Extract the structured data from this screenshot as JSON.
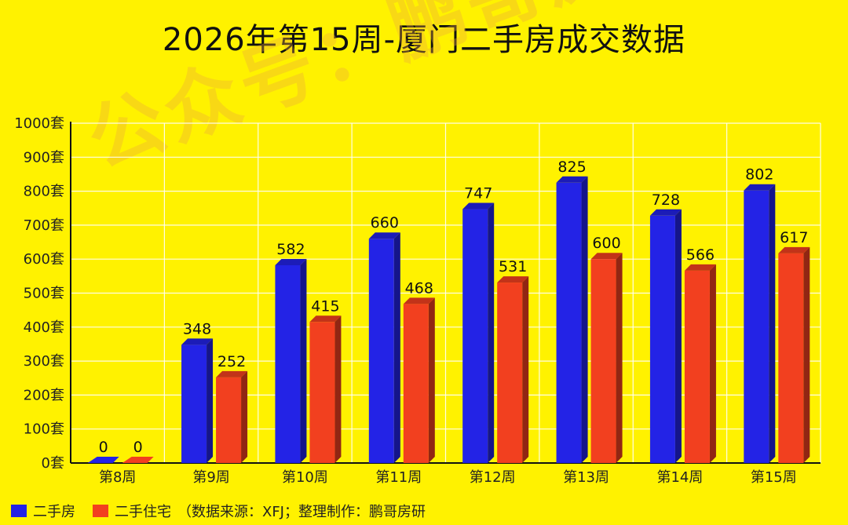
{
  "chart_data": {
    "type": "bar",
    "title": "2026年第15周-厦门二手房成交数据",
    "categories": [
      "第8周",
      "第9周",
      "第10周",
      "第11周",
      "第12周",
      "第13周",
      "第14周",
      "第15周"
    ],
    "series": [
      {
        "name": "二手房",
        "color": "#2323E6",
        "values": [
          0,
          348,
          582,
          660,
          747,
          825,
          728,
          802
        ]
      },
      {
        "name": "二手住宅",
        "color": "#F2401F",
        "values": [
          0,
          252,
          415,
          468,
          531,
          600,
          566,
          617
        ]
      }
    ],
    "yticks": [
      "0套",
      "100套",
      "200套",
      "300套",
      "400套",
      "500套",
      "600套",
      "700套",
      "800套",
      "900套",
      "1000套"
    ],
    "ylim": [
      0,
      1000
    ],
    "grid": true,
    "legend_position": "bottom-left"
  },
  "legend": {
    "series1": "二手房",
    "series2": "二手住宅",
    "note": "（数据来源：XFJ；整理制作：鹏哥房研"
  },
  "watermark": "公众号：鹏哥房研"
}
